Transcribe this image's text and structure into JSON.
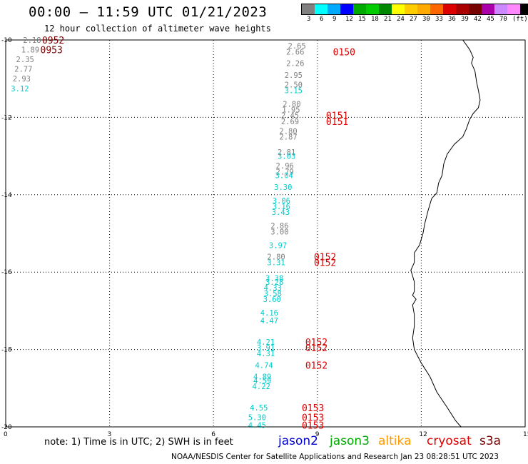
{
  "title": "00:00 — 11:59 UTC 01/21/2023",
  "subtitle": "12 hour collection of altimeter wave heights",
  "legend": {
    "colors": [
      "#808080",
      "#00ffff",
      "#00aaff",
      "#0000ff",
      "#00aa00",
      "#00cc00",
      "#008800",
      "#ffff00",
      "#ffcc00",
      "#ffaa00",
      "#ff6600",
      "#dd0000",
      "#aa0000",
      "#770000",
      "#aa00aa",
      "#cc88ff",
      "#ff88ff",
      "#000000"
    ],
    "labels": [
      "3",
      "6",
      "9",
      "12",
      "15",
      "18",
      "21",
      "24",
      "27",
      "30",
      "33",
      "36",
      "39",
      "42",
      "45",
      "70",
      "(ft)"
    ]
  },
  "axes": {
    "y_labels": [
      "-10",
      "-12",
      "-14",
      "-16",
      "-18",
      "-20"
    ],
    "x_labels": [
      "0",
      "3",
      "6",
      "9",
      "12",
      "15"
    ]
  },
  "observations": [
    {
      "v": "2.18",
      "c": "#808080",
      "lon": 0.5,
      "lat": -10.0
    },
    {
      "v": "1.89",
      "c": "#808080",
      "lon": 0.45,
      "lat": -10.25
    },
    {
      "v": "2.35",
      "c": "#808080",
      "lon": 0.3,
      "lat": -10.5
    },
    {
      "v": "2.77",
      "c": "#808080",
      "lon": 0.25,
      "lat": -10.75
    },
    {
      "v": "2.93",
      "c": "#808080",
      "lon": 0.2,
      "lat": -11.0
    },
    {
      "v": "3.12",
      "c": "#00cccc",
      "lon": 0.15,
      "lat": -11.25
    },
    {
      "v": "2.65",
      "c": "#808080",
      "lon": 8.15,
      "lat": -10.15
    },
    {
      "v": "2.66",
      "c": "#808080",
      "lon": 8.1,
      "lat": -10.3
    },
    {
      "v": "2.26",
      "c": "#808080",
      "lon": 8.1,
      "lat": -10.6
    },
    {
      "v": "2.95",
      "c": "#808080",
      "lon": 8.05,
      "lat": -10.9
    },
    {
      "v": "2.50",
      "c": "#808080",
      "lon": 8.05,
      "lat": -11.15
    },
    {
      "v": "3.15",
      "c": "#00cccc",
      "lon": 8.05,
      "lat": -11.3
    },
    {
      "v": "2.80",
      "c": "#808080",
      "lon": 8.0,
      "lat": -11.65
    },
    {
      "v": "1.95",
      "c": "#808080",
      "lon": 7.98,
      "lat": -11.8
    },
    {
      "v": "2.45",
      "c": "#808080",
      "lon": 7.95,
      "lat": -11.95
    },
    {
      "v": "2.69",
      "c": "#808080",
      "lon": 7.95,
      "lat": -12.1
    },
    {
      "v": "2.80",
      "c": "#808080",
      "lon": 7.9,
      "lat": -12.35
    },
    {
      "v": "2.87",
      "c": "#808080",
      "lon": 7.9,
      "lat": -12.5
    },
    {
      "v": "2.81",
      "c": "#808080",
      "lon": 7.85,
      "lat": -12.9
    },
    {
      "v": "3.03",
      "c": "#00cccc",
      "lon": 7.85,
      "lat": -13.0
    },
    {
      "v": "2.96",
      "c": "#808080",
      "lon": 7.8,
      "lat": -13.25
    },
    {
      "v": "2.79",
      "c": "#808080",
      "lon": 7.8,
      "lat": -13.4
    },
    {
      "v": "3.04",
      "c": "#00cccc",
      "lon": 7.78,
      "lat": -13.5
    },
    {
      "v": "3.30",
      "c": "#00cccc",
      "lon": 7.75,
      "lat": -13.8
    },
    {
      "v": "3.06",
      "c": "#00cccc",
      "lon": 7.7,
      "lat": -14.15
    },
    {
      "v": "3.16",
      "c": "#00cccc",
      "lon": 7.7,
      "lat": -14.3
    },
    {
      "v": "3.43",
      "c": "#00cccc",
      "lon": 7.68,
      "lat": -14.45
    },
    {
      "v": "2.86",
      "c": "#808080",
      "lon": 7.65,
      "lat": -14.8
    },
    {
      "v": "3.00",
      "c": "#808080",
      "lon": 7.65,
      "lat": -14.95
    },
    {
      "v": "3.97",
      "c": "#00cccc",
      "lon": 7.6,
      "lat": -15.3
    },
    {
      "v": "2.80",
      "c": "#808080",
      "lon": 7.55,
      "lat": -15.6
    },
    {
      "v": "3.31",
      "c": "#00cccc",
      "lon": 7.55,
      "lat": -15.75
    },
    {
      "v": "3.38",
      "c": "#00cccc",
      "lon": 7.5,
      "lat": -16.15
    },
    {
      "v": "3.28",
      "c": "#00cccc",
      "lon": 7.5,
      "lat": -16.25
    },
    {
      "v": "4.33",
      "c": "#00cccc",
      "lon": 7.45,
      "lat": -16.4
    },
    {
      "v": "3.58",
      "c": "#00cccc",
      "lon": 7.45,
      "lat": -16.55
    },
    {
      "v": "3.60",
      "c": "#00cccc",
      "lon": 7.43,
      "lat": -16.7
    },
    {
      "v": "4.16",
      "c": "#00cccc",
      "lon": 7.35,
      "lat": -17.05
    },
    {
      "v": "4.47",
      "c": "#00cccc",
      "lon": 7.35,
      "lat": -17.25
    },
    {
      "v": "4.21",
      "c": "#00cccc",
      "lon": 7.25,
      "lat": -17.8
    },
    {
      "v": "3.91",
      "c": "#00cccc",
      "lon": 7.25,
      "lat": -17.95
    },
    {
      "v": "4.31",
      "c": "#00cccc",
      "lon": 7.25,
      "lat": -18.1
    },
    {
      "v": "4.74",
      "c": "#00cccc",
      "lon": 7.2,
      "lat": -18.4
    },
    {
      "v": "4.89",
      "c": "#00cccc",
      "lon": 7.15,
      "lat": -18.7
    },
    {
      "v": "4.59",
      "c": "#00cccc",
      "lon": 7.15,
      "lat": -18.8
    },
    {
      "v": "4.22",
      "c": "#00cccc",
      "lon": 7.12,
      "lat": -18.95
    },
    {
      "v": "4.55",
      "c": "#00cccc",
      "lon": 7.05,
      "lat": -19.5
    },
    {
      "v": "5.30",
      "c": "#00cccc",
      "lon": 7.0,
      "lat": -19.75
    },
    {
      "v": "4.45",
      "c": "#00cccc",
      "lon": 7.0,
      "lat": -19.95
    }
  ],
  "time_labels": [
    {
      "t": "0952",
      "c": "#7a0000",
      "lon": 1.05,
      "lat": -10.0
    },
    {
      "t": "0953",
      "c": "#7a0000",
      "lon": 1.0,
      "lat": -10.25
    },
    {
      "t": "0150",
      "c": "#dd0000",
      "lon": 9.45,
      "lat": -10.3
    },
    {
      "t": "0151",
      "c": "#dd0000",
      "lon": 9.25,
      "lat": -11.95
    },
    {
      "t": "0151",
      "c": "#dd0000",
      "lon": 9.25,
      "lat": -12.1
    },
    {
      "t": "0152",
      "c": "#dd0000",
      "lon": 8.9,
      "lat": -15.6
    },
    {
      "t": "0152",
      "c": "#dd0000",
      "lon": 8.9,
      "lat": -15.75
    },
    {
      "t": "0152",
      "c": "#dd0000",
      "lon": 8.65,
      "lat": -17.8
    },
    {
      "t": "0152",
      "c": "#dd0000",
      "lon": 8.65,
      "lat": -17.95
    },
    {
      "t": "0152",
      "c": "#dd0000",
      "lon": 8.65,
      "lat": -18.4
    },
    {
      "t": "0153",
      "c": "#dd0000",
      "lon": 8.55,
      "lat": -19.5
    },
    {
      "t": "0153",
      "c": "#dd0000",
      "lon": 8.55,
      "lat": -19.75
    },
    {
      "t": "0153",
      "c": "#dd0000",
      "lon": 8.55,
      "lat": -19.95
    }
  ],
  "coastline": [
    [
      13.2,
      -10.0
    ],
    [
      13.4,
      -10.25
    ],
    [
      13.5,
      -10.45
    ],
    [
      13.45,
      -10.6
    ],
    [
      13.55,
      -10.8
    ],
    [
      13.6,
      -11.1
    ],
    [
      13.65,
      -11.3
    ],
    [
      13.7,
      -11.55
    ],
    [
      13.65,
      -11.75
    ],
    [
      13.5,
      -11.9
    ],
    [
      13.4,
      -12.05
    ],
    [
      13.3,
      -12.3
    ],
    [
      13.2,
      -12.5
    ],
    [
      12.95,
      -12.7
    ],
    [
      12.75,
      -12.95
    ],
    [
      12.65,
      -13.2
    ],
    [
      12.6,
      -13.5
    ],
    [
      12.5,
      -13.7
    ],
    [
      12.45,
      -13.95
    ],
    [
      12.3,
      -14.1
    ],
    [
      12.2,
      -14.4
    ],
    [
      12.1,
      -14.75
    ],
    [
      12.05,
      -15.0
    ],
    [
      11.95,
      -15.3
    ],
    [
      11.8,
      -15.5
    ],
    [
      11.8,
      -15.75
    ],
    [
      11.7,
      -15.95
    ],
    [
      11.75,
      -16.1
    ],
    [
      11.8,
      -16.25
    ],
    [
      11.8,
      -16.5
    ],
    [
      11.75,
      -16.6
    ],
    [
      11.85,
      -16.7
    ],
    [
      11.75,
      -16.85
    ],
    [
      11.8,
      -17.1
    ],
    [
      11.8,
      -17.4
    ],
    [
      11.75,
      -17.7
    ],
    [
      11.8,
      -18.0
    ],
    [
      12.0,
      -18.35
    ],
    [
      12.25,
      -18.7
    ],
    [
      12.45,
      -19.1
    ],
    [
      12.75,
      -19.5
    ],
    [
      13.0,
      -19.85
    ],
    [
      13.15,
      -20.0
    ]
  ],
  "note": "note: 1) Time is in UTC; 2) SWH is in feet",
  "satellites": [
    {
      "name": "jason2",
      "color": "#0000cc"
    },
    {
      "name": "jason3",
      "color": "#00aa00"
    },
    {
      "name": "altika",
      "color": "#ff9900"
    },
    {
      "name": "cryosat",
      "color": "#dd0000"
    },
    {
      "name": "s3a",
      "color": "#770000"
    }
  ],
  "footer": "NOAA/NESDIS Center for Satellite Applications and Research    Jan 23 08:28:51 UTC 2023"
}
